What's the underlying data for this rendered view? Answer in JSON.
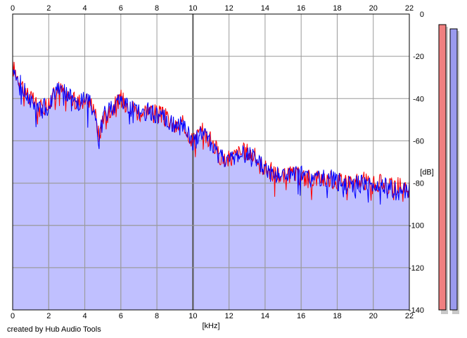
{
  "credit": "created by Hub Audio Tools",
  "colors": {
    "background": "#ffffff",
    "plot_fill": "#c0c0ff",
    "grid": "#9a9a9a",
    "grid_major": "#5a5a5a",
    "left_channel": "#ff0000",
    "right_channel": "#0000ff",
    "meter_left_fill": "#f08080",
    "meter_right_fill": "#9a9aee"
  },
  "chart_data": {
    "type": "area",
    "title": "",
    "xlabel": "[kHz]",
    "ylabel": "[dB]",
    "xlim": [
      0,
      22
    ],
    "ylim": [
      -140,
      0
    ],
    "x_ticks": [
      "0",
      "2",
      "4",
      "6",
      "8",
      "10",
      "12",
      "14",
      "16",
      "18",
      "20",
      "22"
    ],
    "y_ticks": [
      "0",
      "-20",
      "-40",
      "-60",
      "-80",
      "-100",
      "-120",
      "-140"
    ],
    "x_tick_values": [
      0,
      2,
      4,
      6,
      8,
      10,
      12,
      14,
      16,
      18,
      20,
      22
    ],
    "y_tick_values": [
      0,
      -20,
      -40,
      -60,
      -80,
      -100,
      -120,
      -140
    ],
    "grid": true,
    "series": [
      {
        "channel": "left",
        "color": "#ff0000",
        "x": [
          0,
          0.5,
          1,
          1.5,
          2,
          2.5,
          3,
          3.5,
          4,
          4.5,
          4.8,
          5,
          5.5,
          6,
          6.5,
          7,
          7.5,
          8,
          8.5,
          9,
          9.5,
          10,
          10.5,
          11,
          11.5,
          12,
          12.5,
          13,
          13.5,
          14,
          14.5,
          15,
          15.5,
          16,
          16.5,
          17,
          17.5,
          18,
          18.5,
          19,
          19.5,
          20,
          20.5,
          21,
          21.5,
          22
        ],
        "values": [
          -25,
          -33,
          -40,
          -45,
          -42,
          -35,
          -38,
          -42,
          -40,
          -43,
          -59,
          -48,
          -45,
          -40,
          -43,
          -47,
          -45,
          -47,
          -49,
          -54,
          -52,
          -60,
          -55,
          -60,
          -67,
          -69,
          -66,
          -65,
          -68,
          -73,
          -75,
          -77,
          -76,
          -77,
          -78,
          -77,
          -78,
          -79,
          -78,
          -80,
          -79,
          -81,
          -80,
          -82,
          -81,
          -83
        ]
      },
      {
        "channel": "right",
        "color": "#0000ff",
        "x": [
          0,
          0.5,
          1,
          1.5,
          2,
          2.5,
          3,
          3.5,
          4,
          4.5,
          4.8,
          5,
          5.5,
          6,
          6.5,
          7,
          7.5,
          8,
          8.5,
          9,
          9.5,
          10,
          10.5,
          11,
          11.5,
          12,
          12.5,
          13,
          13.5,
          14,
          14.5,
          15,
          15.5,
          16,
          16.5,
          17,
          17.5,
          18,
          18.5,
          19,
          19.5,
          20,
          20.5,
          21,
          21.5,
          22
        ],
        "values": [
          -23,
          -34,
          -41,
          -46,
          -43,
          -34,
          -37,
          -43,
          -41,
          -44,
          -60,
          -49,
          -44,
          -41,
          -44,
          -46,
          -46,
          -48,
          -50,
          -53,
          -53,
          -61,
          -56,
          -61,
          -66,
          -70,
          -67,
          -66,
          -69,
          -74,
          -76,
          -76,
          -77,
          -76,
          -79,
          -78,
          -77,
          -80,
          -79,
          -81,
          -80,
          -82,
          -81,
          -83,
          -82,
          -84
        ]
      }
    ]
  },
  "meters": [
    {
      "channel": "left",
      "value_db": -5,
      "color": "#f08080"
    },
    {
      "channel": "right",
      "value_db": -7,
      "color": "#9a9aee"
    }
  ]
}
